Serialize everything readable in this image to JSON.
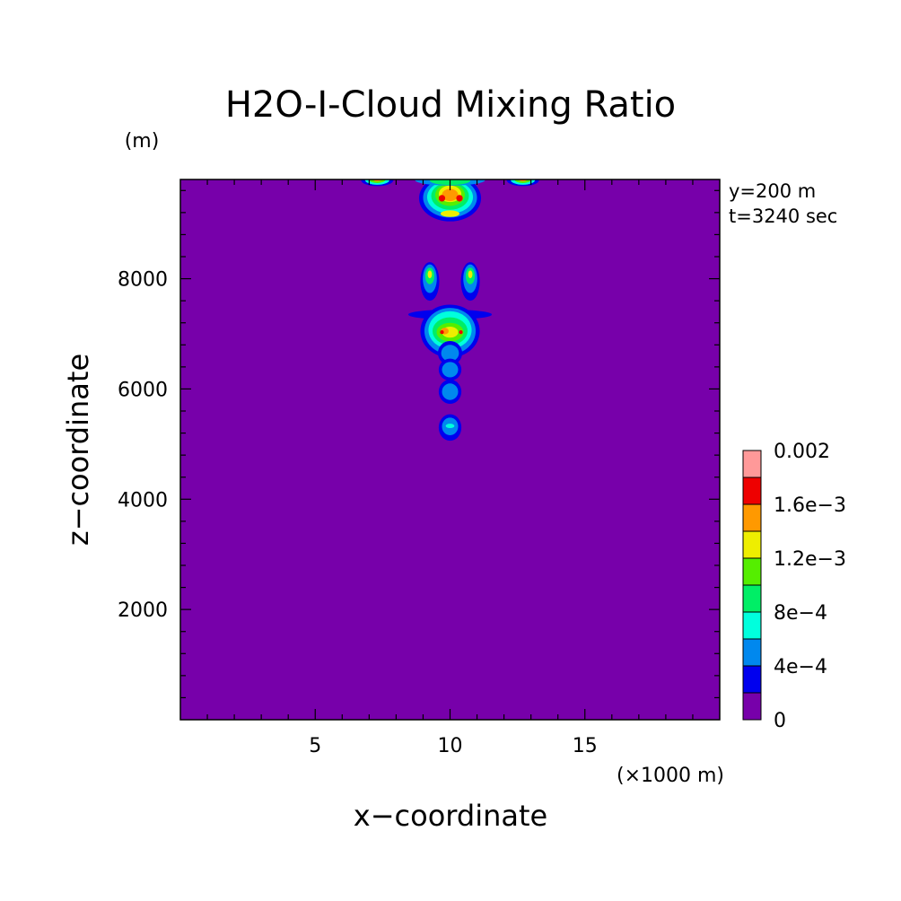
{
  "chart_data": {
    "type": "heatmap",
    "title": "H2O-I-Cloud Mixing Ratio",
    "xlabel": "x−coordinate",
    "ylabel": "z−coordinate",
    "x_unit": "(×1000 m)",
    "y_unit": "(m)",
    "info_lines": [
      "y=200 m",
      "t=3240 sec"
    ],
    "xlim": [
      0,
      20
    ],
    "ylim": [
      0,
      9800
    ],
    "x_ticks": [
      5,
      10,
      15
    ],
    "x_tick_labels": [
      "5",
      "10",
      "15"
    ],
    "y_ticks": [
      2000,
      4000,
      6000,
      8000
    ],
    "y_tick_labels": [
      "2000",
      "4000",
      "6000",
      "8000"
    ],
    "background_color": "#7700aa",
    "colorbar": {
      "levels": [
        0,
        0.00025,
        0.0005,
        0.00075,
        0.001,
        0.00125,
        0.0015,
        0.00175,
        0.002
      ],
      "labels": [
        "0",
        "4e−4",
        "8e−4",
        "1.2e−3",
        "1.6e−3",
        "0.002"
      ],
      "colors": [
        "#7700aa",
        "#0000ee",
        "#0088ee",
        "#00ffdd",
        "#00ee66",
        "#55ee00",
        "#eeee00",
        "#ff9900",
        "#ee0000",
        "#ff9999"
      ]
    },
    "features": [
      {
        "name": "top-plume-center",
        "shape": "blob",
        "color_index": 1,
        "x": 10.0,
        "z": 9460,
        "rx": 1.15,
        "rz": 420
      },
      {
        "name": "top-plume-center",
        "shape": "blob",
        "color_index": 2,
        "x": 10.0,
        "z": 9470,
        "rx": 1.0,
        "rz": 360
      },
      {
        "name": "top-plume-center",
        "shape": "blob",
        "color_index": 3,
        "x": 10.0,
        "z": 9480,
        "rx": 0.85,
        "rz": 300
      },
      {
        "name": "top-plume-center",
        "shape": "blob",
        "color_index": 4,
        "x": 10.0,
        "z": 9500,
        "rx": 0.7,
        "rz": 250
      },
      {
        "name": "top-plume-center",
        "shape": "blob",
        "color_index": 5,
        "x": 10.0,
        "z": 9520,
        "rx": 0.55,
        "rz": 200
      },
      {
        "name": "top-plume-center",
        "shape": "blob",
        "color_index": 6,
        "x": 10.0,
        "z": 9540,
        "rx": 0.42,
        "rz": 150
      },
      {
        "name": "top-plume-center",
        "shape": "blob",
        "color_index": 7,
        "x": 10.0,
        "z": 9520,
        "rx": 0.3,
        "rz": 110
      },
      {
        "name": "top-plume-center",
        "shape": "blob",
        "color_index": 8,
        "x": 9.7,
        "z": 9460,
        "rx": 0.12,
        "rz": 60
      },
      {
        "name": "top-plume-center",
        "shape": "blob",
        "color_index": 8,
        "x": 10.35,
        "z": 9460,
        "rx": 0.12,
        "rz": 60
      },
      {
        "name": "top-plume-center",
        "shape": "blob",
        "color_index": 6,
        "x": 10.0,
        "z": 9180,
        "rx": 0.35,
        "rz": 60
      },
      {
        "name": "top-plume-center",
        "shape": "blob",
        "color_index": 2,
        "x": 10.0,
        "z": 9790,
        "rx": 1.3,
        "rz": 100
      },
      {
        "name": "top-plume-center",
        "shape": "blob",
        "color_index": 4,
        "x": 10.0,
        "z": 9780,
        "rx": 0.75,
        "rz": 80
      },
      {
        "name": "top-left-cell",
        "shape": "blob",
        "color_index": 1,
        "x": 7.3,
        "z": 9790,
        "rx": 0.6,
        "rz": 110
      },
      {
        "name": "top-left-cell",
        "shape": "blob",
        "color_index": 3,
        "x": 7.3,
        "z": 9790,
        "rx": 0.45,
        "rz": 85
      },
      {
        "name": "top-left-cell",
        "shape": "blob",
        "color_index": 5,
        "x": 7.3,
        "z": 9795,
        "rx": 0.3,
        "rz": 60
      },
      {
        "name": "top-left-cell",
        "shape": "blob",
        "color_index": 7,
        "x": 7.3,
        "z": 9800,
        "rx": 0.15,
        "rz": 35
      },
      {
        "name": "top-right-cell",
        "shape": "blob",
        "color_index": 1,
        "x": 12.7,
        "z": 9790,
        "rx": 0.6,
        "rz": 110
      },
      {
        "name": "top-right-cell",
        "shape": "blob",
        "color_index": 3,
        "x": 12.7,
        "z": 9790,
        "rx": 0.45,
        "rz": 85
      },
      {
        "name": "top-right-cell",
        "shape": "blob",
        "color_index": 5,
        "x": 12.7,
        "z": 9795,
        "rx": 0.3,
        "rz": 60
      },
      {
        "name": "top-right-cell",
        "shape": "blob",
        "color_index": 7,
        "x": 12.7,
        "z": 9800,
        "rx": 0.15,
        "rz": 35
      },
      {
        "name": "mid-anvil",
        "shape": "blob",
        "color_index": 1,
        "x": 10.0,
        "z": 7350,
        "rx": 1.55,
        "rz": 90
      },
      {
        "name": "mid-plume",
        "shape": "blob",
        "color_index": 1,
        "x": 10.0,
        "z": 7050,
        "rx": 1.1,
        "rz": 480
      },
      {
        "name": "mid-plume",
        "shape": "blob",
        "color_index": 2,
        "x": 10.0,
        "z": 7050,
        "rx": 0.95,
        "rz": 420
      },
      {
        "name": "mid-plume",
        "shape": "blob",
        "color_index": 3,
        "x": 10.0,
        "z": 7070,
        "rx": 0.8,
        "rz": 340
      },
      {
        "name": "mid-plume",
        "shape": "blob",
        "color_index": 4,
        "x": 10.0,
        "z": 7050,
        "rx": 0.65,
        "rz": 250
      },
      {
        "name": "mid-plume",
        "shape": "blob",
        "color_index": 5,
        "x": 10.0,
        "z": 7030,
        "rx": 0.5,
        "rz": 170
      },
      {
        "name": "mid-plume",
        "shape": "blob",
        "color_index": 6,
        "x": 10.0,
        "z": 7030,
        "rx": 0.3,
        "rz": 100
      },
      {
        "name": "mid-plume",
        "shape": "blob",
        "color_index": 7,
        "x": 9.8,
        "z": 7050,
        "rx": 0.15,
        "rz": 60
      },
      {
        "name": "mid-plume",
        "shape": "blob",
        "color_index": 8,
        "x": 9.7,
        "z": 7030,
        "rx": 0.07,
        "rz": 35
      },
      {
        "name": "mid-plume",
        "shape": "blob",
        "color_index": 8,
        "x": 10.4,
        "z": 7030,
        "rx": 0.07,
        "rz": 35
      },
      {
        "name": "arm-left",
        "shape": "blob",
        "color_index": 1,
        "x": 9.25,
        "z": 7950,
        "rx": 0.35,
        "rz": 350
      },
      {
        "name": "arm-left",
        "shape": "blob",
        "color_index": 2,
        "x": 9.25,
        "z": 8000,
        "rx": 0.26,
        "rz": 260
      },
      {
        "name": "arm-left",
        "shape": "blob",
        "color_index": 4,
        "x": 9.25,
        "z": 8050,
        "rx": 0.17,
        "rz": 150
      },
      {
        "name": "arm-left",
        "shape": "blob",
        "color_index": 6,
        "x": 9.25,
        "z": 8080,
        "rx": 0.08,
        "rz": 70
      },
      {
        "name": "arm-right",
        "shape": "blob",
        "color_index": 1,
        "x": 10.75,
        "z": 7950,
        "rx": 0.35,
        "rz": 350
      },
      {
        "name": "arm-right",
        "shape": "blob",
        "color_index": 2,
        "x": 10.75,
        "z": 8000,
        "rx": 0.26,
        "rz": 260
      },
      {
        "name": "arm-right",
        "shape": "blob",
        "color_index": 4,
        "x": 10.75,
        "z": 8050,
        "rx": 0.17,
        "rz": 150
      },
      {
        "name": "arm-right",
        "shape": "blob",
        "color_index": 6,
        "x": 10.75,
        "z": 8080,
        "rx": 0.08,
        "rz": 70
      },
      {
        "name": "column-cell-1",
        "shape": "blob",
        "color_index": 1,
        "x": 10.0,
        "z": 6650,
        "rx": 0.45,
        "rz": 220
      },
      {
        "name": "column-cell-1",
        "shape": "blob",
        "color_index": 2,
        "x": 10.0,
        "z": 6650,
        "rx": 0.33,
        "rz": 150
      },
      {
        "name": "column-cell-2",
        "shape": "blob",
        "color_index": 1,
        "x": 10.0,
        "z": 6350,
        "rx": 0.42,
        "rz": 200
      },
      {
        "name": "column-cell-2",
        "shape": "blob",
        "color_index": 2,
        "x": 10.0,
        "z": 6350,
        "rx": 0.3,
        "rz": 140
      },
      {
        "name": "column-cell-3",
        "shape": "blob",
        "color_index": 1,
        "x": 10.0,
        "z": 5950,
        "rx": 0.42,
        "rz": 220
      },
      {
        "name": "column-cell-3",
        "shape": "blob",
        "color_index": 2,
        "x": 10.0,
        "z": 5950,
        "rx": 0.3,
        "rz": 150
      },
      {
        "name": "column-cell-4",
        "shape": "blob",
        "color_index": 1,
        "x": 10.0,
        "z": 5300,
        "rx": 0.42,
        "rz": 240
      },
      {
        "name": "column-cell-4",
        "shape": "blob",
        "color_index": 2,
        "x": 10.0,
        "z": 5320,
        "rx": 0.3,
        "rz": 160
      },
      {
        "name": "column-cell-4",
        "shape": "blob",
        "color_index": 3,
        "x": 10.0,
        "z": 5330,
        "rx": 0.16,
        "rz": 40
      }
    ]
  }
}
